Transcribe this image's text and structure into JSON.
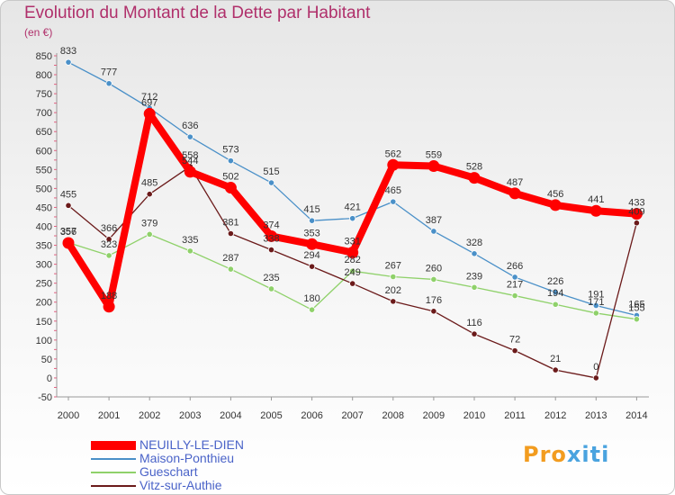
{
  "header": {
    "title": "Evolution du Montant de la Dette par Habitant",
    "subtitle": "(en €)"
  },
  "brand": {
    "part1": "Pro",
    "part2": "xiti"
  },
  "chart_data": {
    "type": "line",
    "title": "Evolution du Montant de la Dette par Habitant",
    "ylabel": "(en €)",
    "xlabel": "",
    "x": [
      "2000",
      "2001",
      "2002",
      "2003",
      "2004",
      "2005",
      "2006",
      "2007",
      "2008",
      "2009",
      "2010",
      "2011",
      "2012",
      "2013",
      "2014"
    ],
    "ylim": [
      -50,
      850
    ],
    "yticks": [
      -50,
      0,
      50,
      100,
      150,
      200,
      250,
      300,
      350,
      400,
      450,
      500,
      550,
      600,
      650,
      700,
      750,
      800,
      850
    ],
    "grid": false,
    "legend_position": "bottom-left",
    "series": [
      {
        "name": "Maison-Ponthieu",
        "color": "#4a90c8",
        "values": [
          833,
          777,
          712,
          636,
          573,
          515,
          415,
          421,
          465,
          387,
          328,
          266,
          226,
          191,
          165
        ]
      },
      {
        "name": "Gueschart",
        "color": "#8fd16a",
        "values": [
          357,
          323,
          379,
          335,
          287,
          235,
          180,
          282,
          267,
          260,
          239,
          217,
          194,
          171,
          155
        ]
      },
      {
        "name": "Vitz-sur-Authie",
        "color": "#6b1a1a",
        "values": [
          455,
          366,
          485,
          558,
          381,
          338,
          294,
          249,
          202,
          176,
          116,
          72,
          21,
          0,
          409
        ]
      },
      {
        "name": "NEUILLY-LE-DIEN",
        "color": "#ff0000",
        "values": [
          356,
          188,
          697,
          544,
          502,
          374,
          353,
          331,
          562,
          559,
          528,
          487,
          456,
          441,
          433
        ]
      }
    ],
    "legend": [
      "NEUILLY-LE-DIEN",
      "Maison-Ponthieu",
      "Gueschart",
      "Vitz-sur-Authie"
    ]
  }
}
